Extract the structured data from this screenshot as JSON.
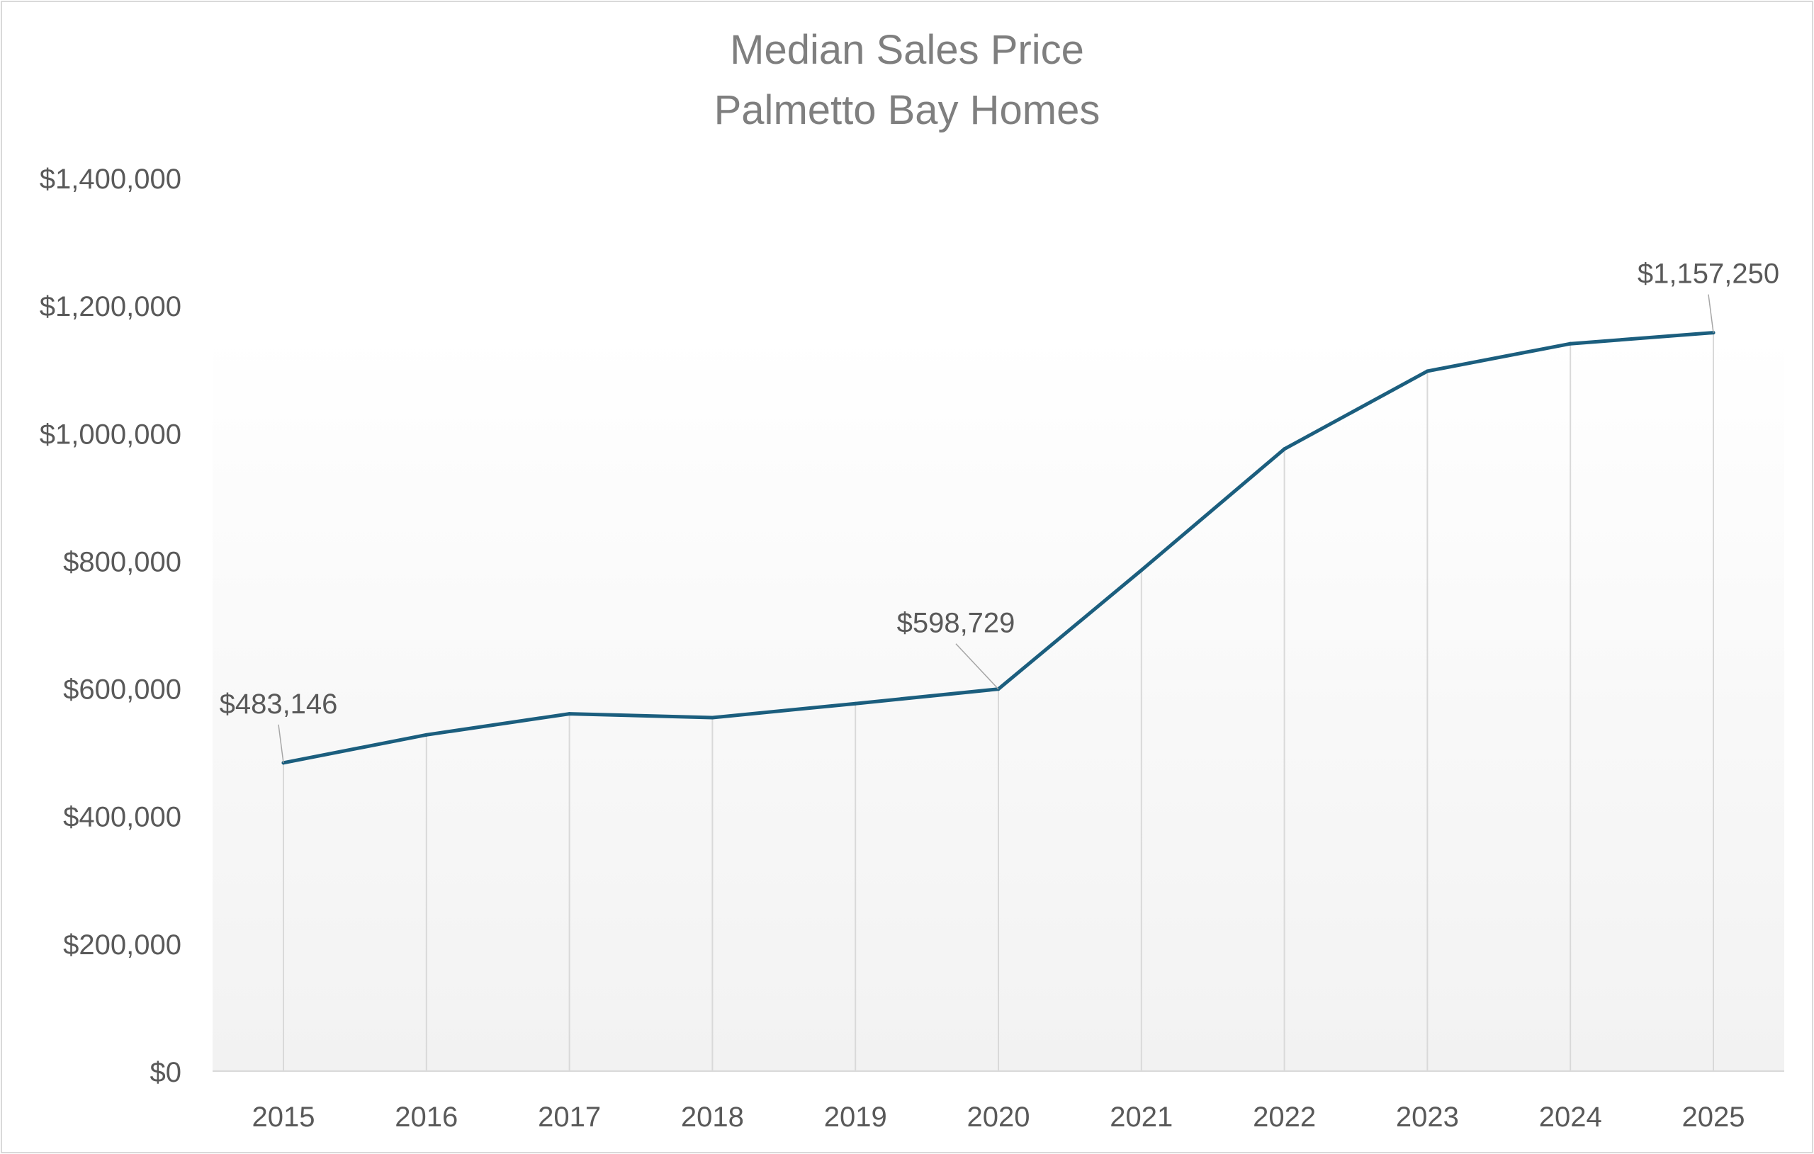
{
  "chart_data": {
    "type": "line",
    "title_line1": "Median Sales Price",
    "title_line2": "Palmetto Bay Homes",
    "xlabel": "",
    "ylabel": "",
    "categories": [
      "2015",
      "2016",
      "2017",
      "2018",
      "2019",
      "2020",
      "2021",
      "2022",
      "2023",
      "2024",
      "2025"
    ],
    "series": [
      {
        "name": "Median Sales Price",
        "color": "#1b5e7e",
        "values": [
          483146,
          527000,
          560000,
          554000,
          576000,
          598729,
          785000,
          975000,
          1097000,
          1140000,
          1157250
        ]
      }
    ],
    "ylim": [
      0,
      1400000
    ],
    "yticks": [
      0,
      200000,
      400000,
      600000,
      800000,
      1000000,
      1200000,
      1400000
    ],
    "ytick_labels": [
      "$0",
      "$200,000",
      "$400,000",
      "$600,000",
      "$800,000",
      "$1,000,000",
      "$1,200,000",
      "$1,400,000"
    ],
    "data_labels": [
      {
        "index": 0,
        "text": "$483,146"
      },
      {
        "index": 5,
        "text": "$598,729"
      },
      {
        "index": 10,
        "text": "$1,157,250"
      }
    ],
    "drop_lines": true,
    "grid": false,
    "legend": "none",
    "colors": {
      "line": "#1b5e7e",
      "text": "#595959",
      "title": "#7f7f7f",
      "drop_line": "#d9d9d9",
      "axis": "#d9d9d9",
      "plot_bg_top": "#ffffff",
      "plot_bg_bottom": "#f2f2f2",
      "border": "#d9d9d9"
    }
  }
}
